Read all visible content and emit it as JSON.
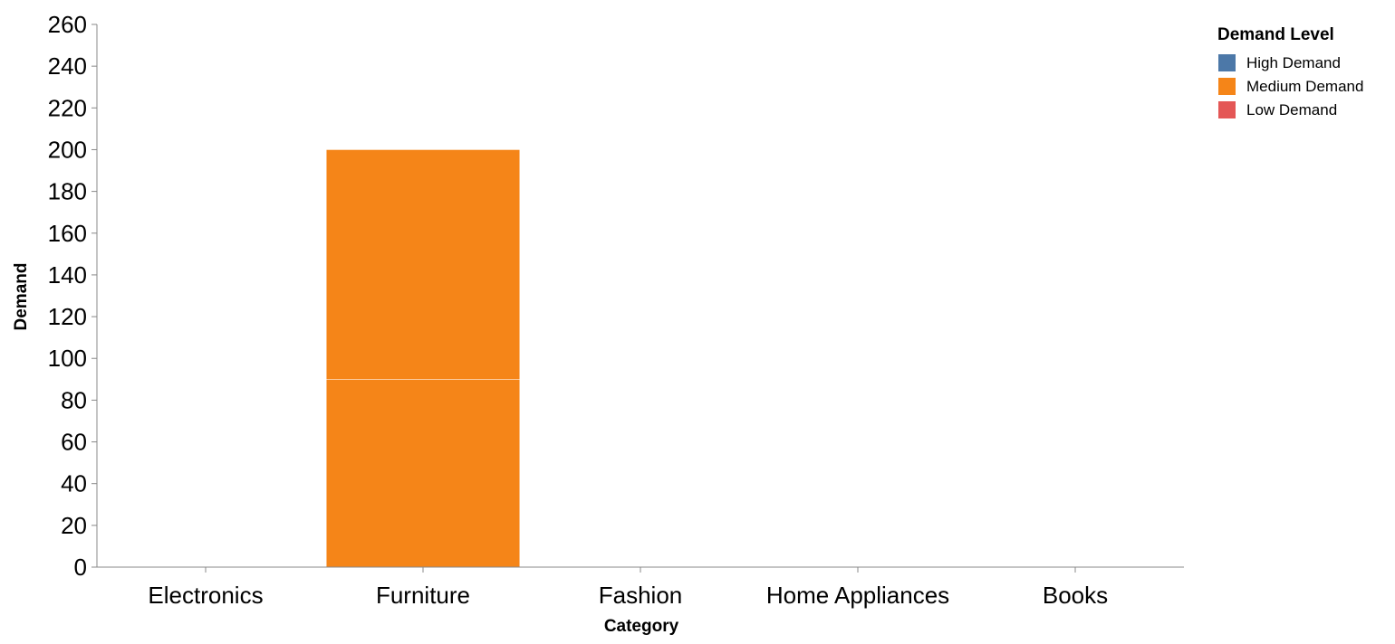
{
  "chart_data": {
    "type": "bar",
    "stacked": true,
    "xlabel": "Category",
    "ylabel": "Demand",
    "ylim": [
      0,
      260
    ],
    "y_ticks": [
      0,
      20,
      40,
      60,
      80,
      100,
      120,
      140,
      160,
      180,
      200,
      220,
      240,
      260
    ],
    "categories": [
      "Electronics",
      "Furniture",
      "Fashion",
      "Home Appliances",
      "Books"
    ],
    "series": [
      {
        "name": "High Demand",
        "color": "#4c78a8",
        "values": [
          0,
          0,
          0,
          0,
          0
        ]
      },
      {
        "name": "Medium Demand",
        "color": "#f58518",
        "values": [
          0,
          200,
          0,
          0,
          0
        ],
        "segments": [
          [],
          [
            90,
            110
          ],
          [],
          [],
          []
        ]
      },
      {
        "name": "Low Demand",
        "color": "#e45756",
        "values": [
          0,
          0,
          0,
          0,
          0
        ]
      }
    ],
    "legend": {
      "title": "Demand Level",
      "position": "top-right"
    },
    "grid": false
  }
}
